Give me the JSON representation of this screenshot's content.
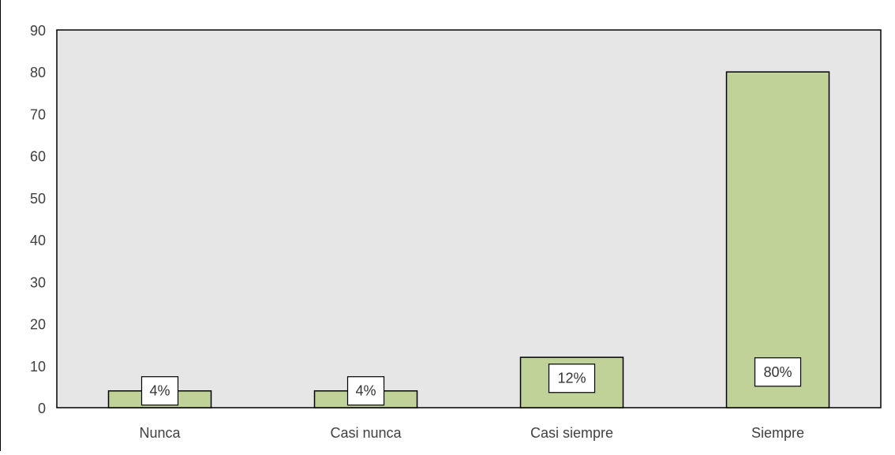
{
  "chart_data": {
    "type": "bar",
    "categories": [
      "Nunca",
      "Casi nunca",
      "Casi siempre",
      "Siempre"
    ],
    "values": [
      4,
      4,
      12,
      80
    ],
    "data_labels": [
      "4%",
      "4%",
      "12%",
      "80%"
    ],
    "title": "",
    "xlabel": "",
    "ylabel": "",
    "ylim": [
      0,
      90
    ],
    "yticks": [
      "0",
      "10",
      "20",
      "30",
      "40",
      "50",
      "60",
      "70",
      "80",
      "90"
    ],
    "grid": false,
    "legend": "none",
    "colors": {
      "bar_fill": "#c0d298",
      "bar_stroke": "#000000",
      "plot_bg": "#e6e6e6",
      "label_box_fill": "#ffffff"
    }
  }
}
